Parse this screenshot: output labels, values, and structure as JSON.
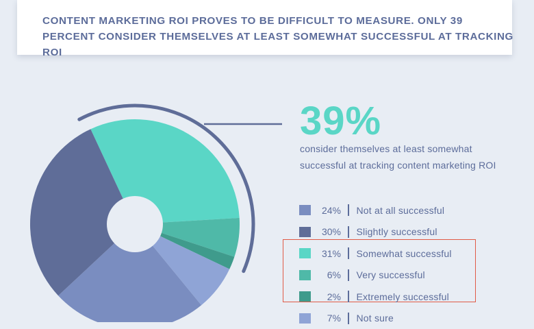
{
  "header": {
    "title": "CONTENT MARKETING ROI PROVES TO BE DIFFICULT TO MEASURE. ONLY 39 PERCENT CONSIDER THEMSELVES AT LEAST SOMEWHAT SUCCESSFUL AT TRACKING ROI"
  },
  "callout": {
    "value": "39%",
    "text": "consider themselves at least somewhat successful at tracking content marketing ROI"
  },
  "legend": [
    {
      "pct": "24%",
      "label": "Not at all successful",
      "color": "#7a8dc0"
    },
    {
      "pct": "30%",
      "label": "Slightly successful",
      "color": "#5f6d98"
    },
    {
      "pct": "31%",
      "label": "Somewhat successful",
      "color": "#5ad6c6"
    },
    {
      "pct": "6%",
      "label": "Very successful",
      "color": "#4fb9a8"
    },
    {
      "pct": "2%",
      "label": "Extremely successful",
      "color": "#3f9b8c"
    },
    {
      "pct": "7%",
      "label": "Not sure",
      "color": "#8fa4d6"
    }
  ],
  "chart_data": {
    "type": "pie",
    "donut": true,
    "categories": [
      "Somewhat successful",
      "Very successful",
      "Extremely successful",
      "Not sure",
      "Not at all successful",
      "Slightly successful"
    ],
    "values": [
      31,
      6,
      2,
      7,
      24,
      30
    ],
    "colors": [
      "#5ad6c6",
      "#4fb9a8",
      "#3f9b8c",
      "#8fa4d6",
      "#7a8dc0",
      "#5f6d98"
    ],
    "highlighted": [
      "Somewhat successful",
      "Very successful",
      "Extremely successful"
    ],
    "highlight_total": "39%"
  }
}
